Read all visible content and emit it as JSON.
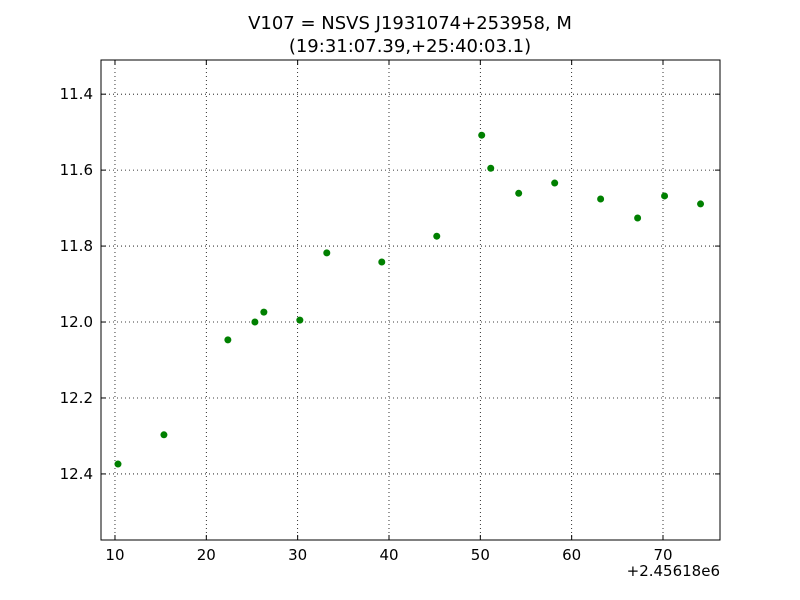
{
  "chart_data": {
    "type": "scatter",
    "title": "V107 = NSVS J1931074+253958, M",
    "subtitle": "(19:31:07.39,+25:40:03.1)",
    "x_offset_label": "+2.45618e6",
    "series": [
      {
        "color": "#008000",
        "x": [
          10.33,
          15.36,
          22.36,
          25.32,
          26.3,
          30.24,
          33.19,
          39.21,
          45.23,
          50.15,
          51.14,
          54.2,
          58.14,
          63.17,
          67.22,
          70.17,
          74.11
        ],
        "values": [
          12.374,
          12.297,
          12.047,
          12.0,
          11.974,
          11.995,
          11.818,
          11.842,
          11.774,
          11.508,
          11.595,
          11.661,
          11.634,
          11.676,
          11.726,
          11.668,
          11.689
        ]
      }
    ],
    "xlim": [
      8.47,
      76.24
    ],
    "xticks": [
      10,
      20,
      30,
      40,
      50,
      60,
      70
    ],
    "ylim": [
      12.574,
      11.31
    ],
    "yticks": [
      11.4,
      11.6,
      11.8,
      {
        "value": 12,
        "label": "12.0"
      },
      12.2,
      12.4
    ],
    "grid": true
  }
}
